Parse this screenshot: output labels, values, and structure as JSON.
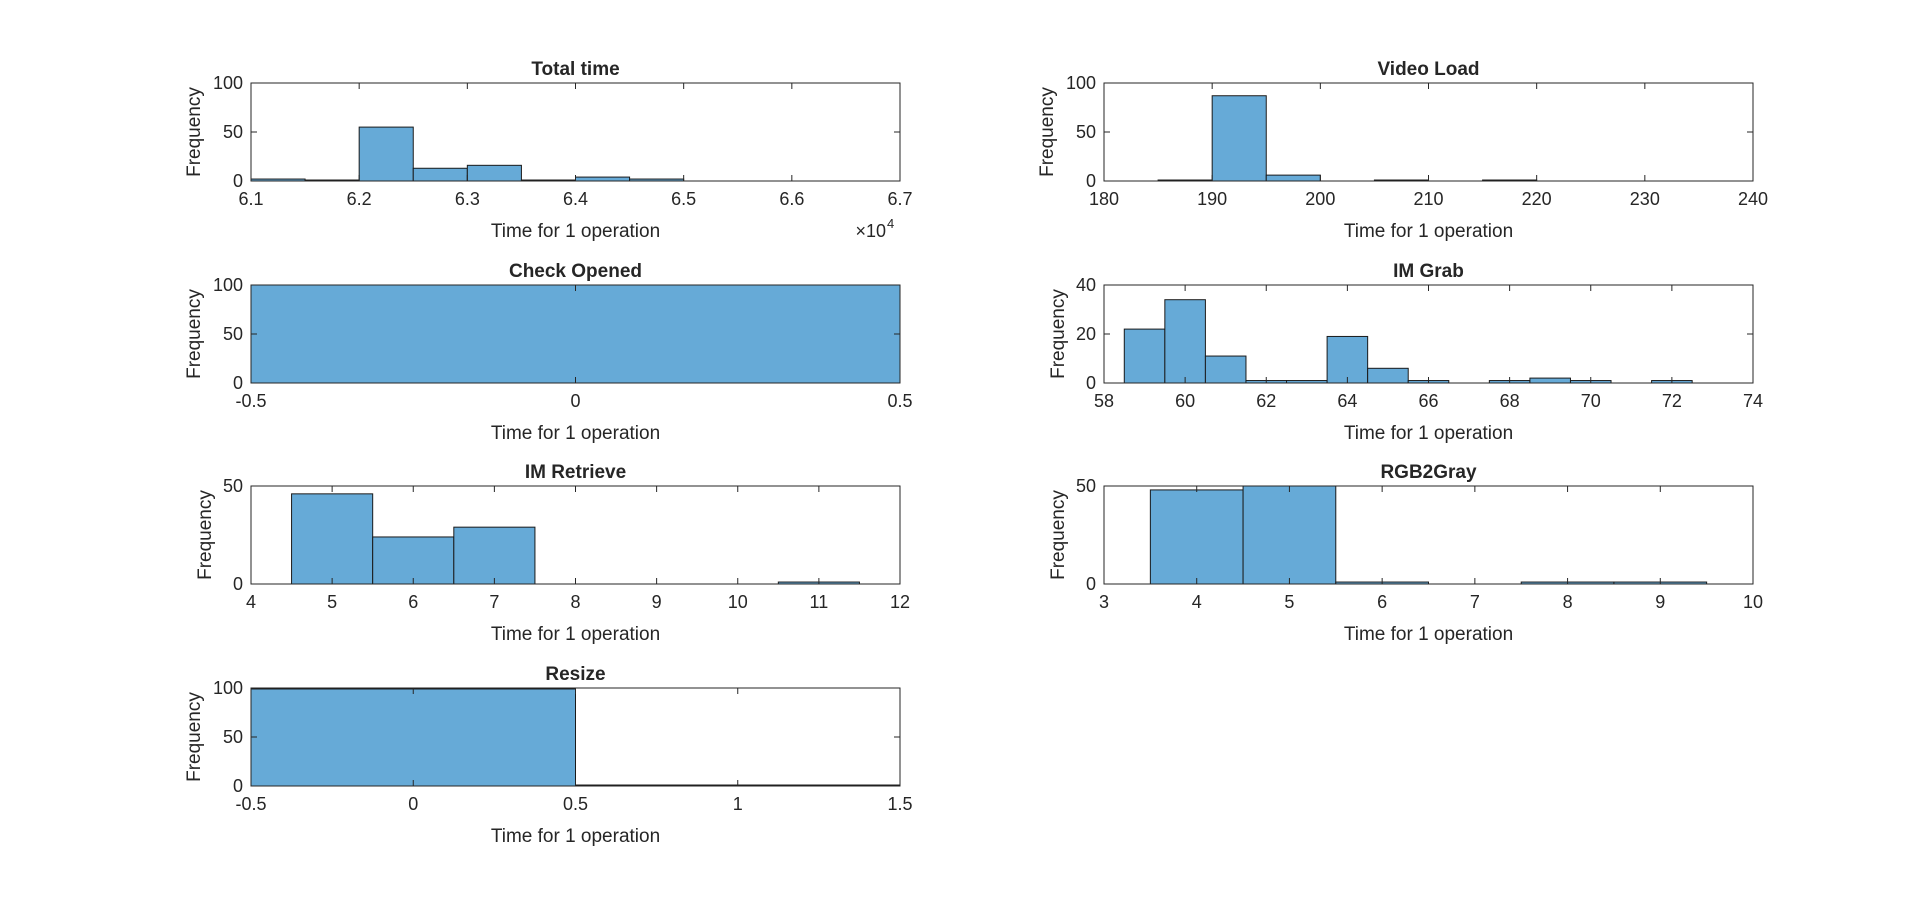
{
  "chart_data": [
    {
      "type": "bar",
      "title": "Total time",
      "xlabel": "Time for 1 operation",
      "ylabel": "Frequency",
      "xlim": [
        61000,
        67000
      ],
      "ylim": [
        0,
        100
      ],
      "xticks": [
        61000,
        62000,
        63000,
        64000,
        65000,
        66000,
        67000
      ],
      "xtick_labels": [
        "6.1",
        "6.2",
        "6.3",
        "6.4",
        "6.5",
        "6.6",
        "6.7"
      ],
      "yticks": [
        0,
        50,
        100
      ],
      "ytick_labels": [
        "0",
        "50",
        "100"
      ],
      "exponent_label": "×10",
      "exponent_power": "4",
      "bins": [
        {
          "x0": 61000,
          "x1": 61500,
          "value": 2
        },
        {
          "x0": 61500,
          "x1": 62000,
          "value": 1
        },
        {
          "x0": 62000,
          "x1": 62500,
          "value": 55
        },
        {
          "x0": 62500,
          "x1": 63000,
          "value": 13
        },
        {
          "x0": 63000,
          "x1": 63500,
          "value": 16
        },
        {
          "x0": 63500,
          "x1": 64000,
          "value": 1
        },
        {
          "x0": 64000,
          "x1": 64500,
          "value": 4
        },
        {
          "x0": 64500,
          "x1": 65000,
          "value": 2
        }
      ]
    },
    {
      "type": "bar",
      "title": "Video Load",
      "xlabel": "Time for 1 operation",
      "ylabel": "Frequency",
      "xlim": [
        180,
        240
      ],
      "ylim": [
        0,
        100
      ],
      "xticks": [
        180,
        190,
        200,
        210,
        220,
        230,
        240
      ],
      "xtick_labels": [
        "180",
        "190",
        "200",
        "210",
        "220",
        "230",
        "240"
      ],
      "yticks": [
        0,
        50,
        100
      ],
      "ytick_labels": [
        "0",
        "50",
        "100"
      ],
      "bins": [
        {
          "x0": 185,
          "x1": 190,
          "value": 1
        },
        {
          "x0": 190,
          "x1": 195,
          "value": 87
        },
        {
          "x0": 195,
          "x1": 200,
          "value": 6
        },
        {
          "x0": 205,
          "x1": 210,
          "value": 1
        },
        {
          "x0": 215,
          "x1": 220,
          "value": 1
        }
      ]
    },
    {
      "type": "bar",
      "title": "Check Opened",
      "xlabel": "Time for 1 operation",
      "ylabel": "Frequency",
      "xlim": [
        -0.5,
        0.5
      ],
      "ylim": [
        0,
        100
      ],
      "xticks": [
        -0.5,
        0,
        0.5
      ],
      "xtick_labels": [
        "-0.5",
        "0",
        "0.5"
      ],
      "yticks": [
        0,
        50,
        100
      ],
      "ytick_labels": [
        "0",
        "50",
        "100"
      ],
      "bins": [
        {
          "x0": -0.5,
          "x1": 0.5,
          "value": 100
        }
      ]
    },
    {
      "type": "bar",
      "title": "IM Grab",
      "xlabel": "Time for 1 operation",
      "ylabel": "Frequency",
      "xlim": [
        58,
        74
      ],
      "ylim": [
        0,
        40
      ],
      "xticks": [
        58,
        60,
        62,
        64,
        66,
        68,
        70,
        72,
        74
      ],
      "xtick_labels": [
        "58",
        "60",
        "62",
        "64",
        "66",
        "68",
        "70",
        "72",
        "74"
      ],
      "yticks": [
        0,
        20,
        40
      ],
      "ytick_labels": [
        "0",
        "20",
        "40"
      ],
      "bins": [
        {
          "x0": 58.5,
          "x1": 59.5,
          "value": 22
        },
        {
          "x0": 59.5,
          "x1": 60.5,
          "value": 34
        },
        {
          "x0": 60.5,
          "x1": 61.5,
          "value": 11
        },
        {
          "x0": 61.5,
          "x1": 62.5,
          "value": 1
        },
        {
          "x0": 62.5,
          "x1": 63.5,
          "value": 1
        },
        {
          "x0": 63.5,
          "x1": 64.5,
          "value": 19
        },
        {
          "x0": 64.5,
          "x1": 65.5,
          "value": 6
        },
        {
          "x0": 65.5,
          "x1": 66.5,
          "value": 1
        },
        {
          "x0": 67.5,
          "x1": 68.5,
          "value": 1
        },
        {
          "x0": 68.5,
          "x1": 69.5,
          "value": 2
        },
        {
          "x0": 69.5,
          "x1": 70.5,
          "value": 1
        },
        {
          "x0": 71.5,
          "x1": 72.5,
          "value": 1
        }
      ]
    },
    {
      "type": "bar",
      "title": "IM Retrieve",
      "xlabel": "Time for 1 operation",
      "ylabel": "Frequency",
      "xlim": [
        4,
        12
      ],
      "ylim": [
        0,
        50
      ],
      "xticks": [
        4,
        5,
        6,
        7,
        8,
        9,
        10,
        11,
        12
      ],
      "xtick_labels": [
        "4",
        "5",
        "6",
        "7",
        "8",
        "9",
        "10",
        "11",
        "12"
      ],
      "yticks": [
        0,
        50
      ],
      "ytick_labels": [
        "0",
        "50"
      ],
      "bins": [
        {
          "x0": 4.5,
          "x1": 5.5,
          "value": 46
        },
        {
          "x0": 5.5,
          "x1": 6.5,
          "value": 24
        },
        {
          "x0": 6.5,
          "x1": 7.5,
          "value": 29
        },
        {
          "x0": 10.5,
          "x1": 11.5,
          "value": 1
        }
      ]
    },
    {
      "type": "bar",
      "title": "RGB2Gray",
      "xlabel": "Time for 1 operation",
      "ylabel": "Frequency",
      "xlim": [
        3,
        10
      ],
      "ylim": [
        0,
        50
      ],
      "xticks": [
        3,
        4,
        5,
        6,
        7,
        8,
        9,
        10
      ],
      "xtick_labels": [
        "3",
        "4",
        "5",
        "6",
        "7",
        "8",
        "9",
        "10"
      ],
      "yticks": [
        0,
        50
      ],
      "ytick_labels": [
        "0",
        "50"
      ],
      "bins": [
        {
          "x0": 3.5,
          "x1": 4.5,
          "value": 48
        },
        {
          "x0": 4.5,
          "x1": 5.5,
          "value": 50
        },
        {
          "x0": 5.5,
          "x1": 6.5,
          "value": 1
        },
        {
          "x0": 7.5,
          "x1": 8.5,
          "value": 1
        },
        {
          "x0": 8.5,
          "x1": 9.5,
          "value": 1
        }
      ]
    },
    {
      "type": "bar",
      "title": "Resize",
      "xlabel": "Time for 1 operation",
      "ylabel": "Frequency",
      "xlim": [
        -0.5,
        1.5
      ],
      "ylim": [
        0,
        100
      ],
      "xticks": [
        -0.5,
        0,
        0.5,
        1,
        1.5
      ],
      "xtick_labels": [
        "-0.5",
        "0",
        "0.5",
        "1",
        "1.5"
      ],
      "yticks": [
        0,
        50,
        100
      ],
      "ytick_labels": [
        "0",
        "50",
        "100"
      ],
      "bins": [
        {
          "x0": -0.5,
          "x1": 0.5,
          "value": 99
        },
        {
          "x0": 0.5,
          "x1": 1.5,
          "value": 1
        }
      ]
    }
  ],
  "colors": {
    "bar_fill": "#66aad7",
    "bar_edge": "#1a1a1a",
    "axis": "#262626",
    "background": "#ffffff"
  }
}
